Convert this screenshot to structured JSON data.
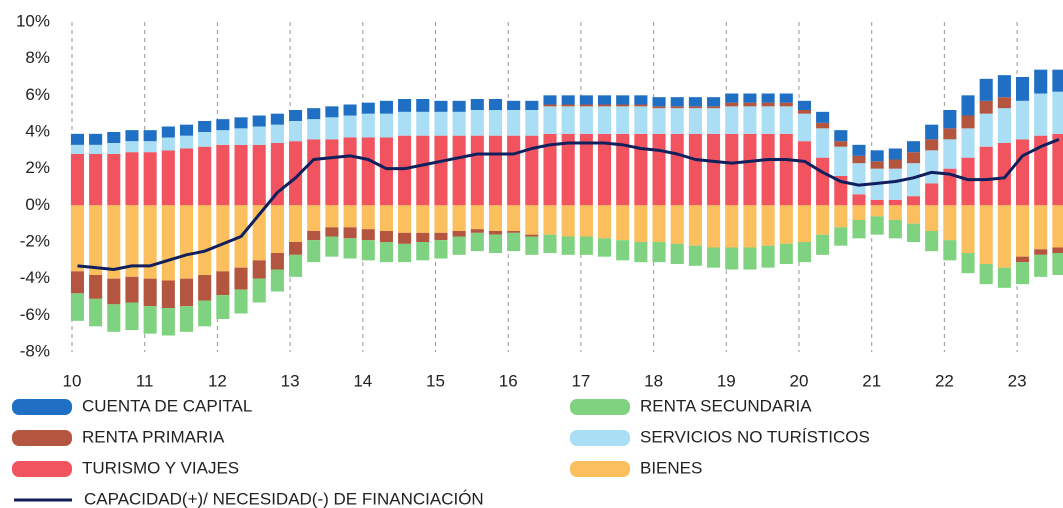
{
  "chart_data": {
    "type": "bar",
    "stacked": true,
    "xgrid": true,
    "categories": [
      "10",
      null,
      null,
      null,
      "11",
      null,
      null,
      null,
      "12",
      null,
      null,
      null,
      "13",
      null,
      null,
      null,
      "14",
      null,
      null,
      null,
      "15",
      null,
      null,
      null,
      "16",
      null,
      null,
      null,
      "17",
      null,
      null,
      null,
      "18",
      null,
      null,
      null,
      "19",
      null,
      null,
      null,
      "20",
      null,
      null,
      null,
      "21",
      null,
      null,
      null,
      "22",
      null,
      null,
      null,
      "23",
      null,
      null
    ],
    "ylim": [
      -8,
      10
    ],
    "yticks": [
      {
        "value": -8,
        "label": "-8%"
      },
      {
        "value": -6,
        "label": "-6%"
      },
      {
        "value": -4,
        "label": "-4%"
      },
      {
        "value": -2,
        "label": "-2%"
      },
      {
        "value": 0,
        "label": "0%"
      },
      {
        "value": 2,
        "label": "2%"
      },
      {
        "value": 4,
        "label": "4%"
      },
      {
        "value": 6,
        "label": "6%"
      },
      {
        "value": 8,
        "label": "8%"
      },
      {
        "value": 10,
        "label": "10%"
      }
    ],
    "series": [
      {
        "name": "CUENTA DE CAPITAL",
        "color": "#1f6fc5",
        "values": [
          0.6,
          0.6,
          0.6,
          0.6,
          0.6,
          0.6,
          0.6,
          0.6,
          0.6,
          0.6,
          0.6,
          0.6,
          0.6,
          0.6,
          0.6,
          0.6,
          0.6,
          0.7,
          0.7,
          0.7,
          0.6,
          0.6,
          0.6,
          0.6,
          0.5,
          0.5,
          0.5,
          0.5,
          0.5,
          0.5,
          0.5,
          0.5,
          0.5,
          0.5,
          0.5,
          0.5,
          0.5,
          0.5,
          0.5,
          0.5,
          0.5,
          0.6,
          0.6,
          0.6,
          0.6,
          0.6,
          0.6,
          0.8,
          1.0,
          1.1,
          1.2,
          1.2,
          1.3,
          1.3,
          1.2
        ]
      },
      {
        "name": "RENTA SECUNDARIA",
        "color": "#7fd27f",
        "values": [
          -1.5,
          -1.5,
          -1.5,
          -1.5,
          -1.5,
          -1.5,
          -1.4,
          -1.4,
          -1.3,
          -1.3,
          -1.3,
          -1.2,
          -1.2,
          -1.2,
          -1.1,
          -1.1,
          -1.1,
          -1.1,
          -1.0,
          -1.0,
          -1.0,
          -1.0,
          -1.0,
          -1.0,
          -1.0,
          -1.0,
          -1.0,
          -1.0,
          -1.0,
          -1.0,
          -1.1,
          -1.1,
          -1.1,
          -1.1,
          -1.1,
          -1.1,
          -1.2,
          -1.2,
          -1.2,
          -1.1,
          -1.1,
          -1.1,
          -1.0,
          -1.0,
          -1.0,
          -1.0,
          -1.0,
          -1.1,
          -1.1,
          -1.1,
          -1.1,
          -1.1,
          -1.2,
          -1.2,
          -1.2
        ]
      },
      {
        "name": "RENTA PRIMARIA",
        "color": "#b4553f",
        "values": [
          -1.2,
          -1.3,
          -1.4,
          -1.4,
          -1.5,
          -1.5,
          -1.5,
          -1.4,
          -1.3,
          -1.2,
          -1.0,
          -0.9,
          -0.7,
          -0.5,
          -0.5,
          -0.6,
          -0.6,
          -0.6,
          -0.6,
          -0.5,
          -0.4,
          -0.3,
          -0.2,
          -0.2,
          -0.1,
          -0.1,
          0.1,
          0.1,
          0.1,
          0.1,
          0.1,
          0.1,
          0.1,
          0.1,
          0.1,
          0.1,
          0.2,
          0.2,
          0.2,
          0.2,
          0.2,
          0.3,
          0.3,
          0.4,
          0.4,
          0.5,
          0.6,
          0.6,
          0.6,
          0.7,
          0.7,
          0.6,
          -0.3,
          -0.3,
          -0.3
        ]
      },
      {
        "name": "SERVICIOS NO TURÍSTICOS",
        "color": "#a9def5",
        "values": [
          0.5,
          0.5,
          0.6,
          0.6,
          0.6,
          0.7,
          0.7,
          0.8,
          0.8,
          0.9,
          1.0,
          1.0,
          1.1,
          1.1,
          1.2,
          1.2,
          1.3,
          1.3,
          1.3,
          1.3,
          1.3,
          1.3,
          1.4,
          1.4,
          1.4,
          1.4,
          1.5,
          1.5,
          1.5,
          1.5,
          1.5,
          1.5,
          1.4,
          1.4,
          1.4,
          1.4,
          1.5,
          1.5,
          1.5,
          1.5,
          1.5,
          1.6,
          1.6,
          1.7,
          1.7,
          1.7,
          1.8,
          1.8,
          1.6,
          1.6,
          1.8,
          1.9,
          2.1,
          2.3,
          2.3
        ]
      },
      {
        "name": "TURISMO Y VIAJES",
        "color": "#f1545f",
        "values": [
          2.8,
          2.8,
          2.8,
          2.9,
          2.9,
          3.0,
          3.1,
          3.2,
          3.3,
          3.3,
          3.3,
          3.4,
          3.5,
          3.6,
          3.6,
          3.7,
          3.7,
          3.7,
          3.8,
          3.8,
          3.8,
          3.8,
          3.8,
          3.8,
          3.8,
          3.8,
          3.9,
          3.9,
          3.9,
          3.9,
          3.9,
          3.9,
          3.9,
          3.9,
          3.9,
          3.9,
          3.9,
          3.9,
          3.9,
          3.9,
          3.5,
          2.6,
          1.6,
          0.6,
          0.3,
          0.3,
          0.5,
          1.2,
          2.0,
          2.6,
          3.2,
          3.4,
          3.6,
          3.8,
          3.9
        ]
      },
      {
        "name": "BIENES",
        "color": "#fcbf5e",
        "values": [
          -3.6,
          -3.8,
          -4.0,
          -3.9,
          -4.0,
          -4.1,
          -4.0,
          -3.8,
          -3.6,
          -3.4,
          -3.0,
          -2.6,
          -2.0,
          -1.4,
          -1.2,
          -1.2,
          -1.3,
          -1.4,
          -1.5,
          -1.5,
          -1.5,
          -1.4,
          -1.3,
          -1.4,
          -1.4,
          -1.6,
          -1.6,
          -1.7,
          -1.7,
          -1.8,
          -1.9,
          -2.0,
          -2.0,
          -2.1,
          -2.2,
          -2.3,
          -2.3,
          -2.3,
          -2.2,
          -2.1,
          -2.0,
          -1.6,
          -1.2,
          -0.8,
          -0.6,
          -0.8,
          -1.0,
          -1.4,
          -1.9,
          -2.6,
          -3.2,
          -3.4,
          -2.8,
          -2.4,
          -2.3
        ]
      },
      {
        "name": "CAPACIDAD(+)/ NECESIDAD(-) DE FINANCIACIÓN",
        "color": "#111f5c",
        "type": "line",
        "values": [
          -3.3,
          -3.4,
          -3.5,
          -3.3,
          -3.3,
          -3.0,
          -2.7,
          -2.5,
          -2.1,
          -1.7,
          -0.5,
          0.7,
          1.5,
          2.5,
          2.6,
          2.7,
          2.5,
          2.0,
          2.0,
          2.2,
          2.4,
          2.6,
          2.8,
          2.8,
          2.8,
          3.1,
          3.3,
          3.4,
          3.4,
          3.4,
          3.3,
          3.1,
          3.0,
          2.8,
          2.5,
          2.4,
          2.3,
          2.4,
          2.5,
          2.5,
          2.4,
          1.8,
          1.3,
          1.1,
          1.2,
          1.3,
          1.5,
          1.8,
          1.7,
          1.4,
          1.4,
          1.5,
          2.7,
          3.2,
          3.6
        ]
      }
    ]
  }
}
